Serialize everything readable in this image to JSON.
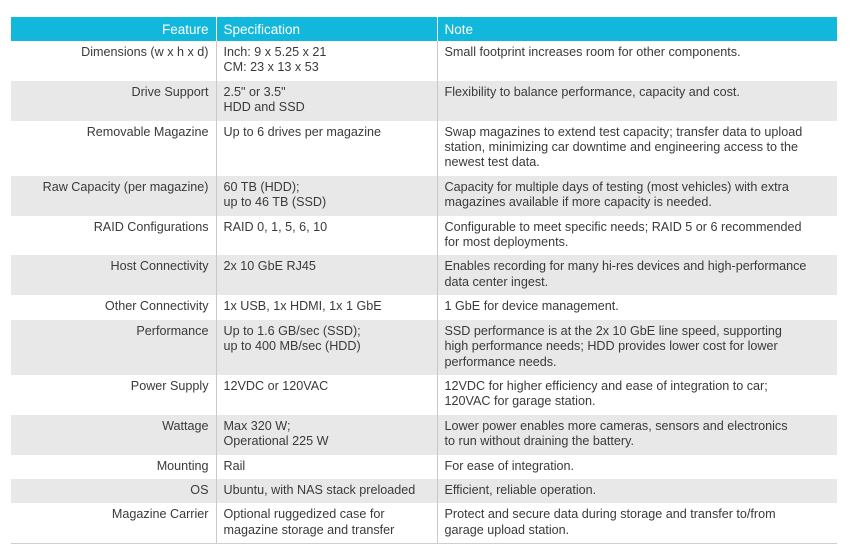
{
  "table": {
    "headers": [
      "Feature",
      "Specification",
      "Note"
    ],
    "rows": [
      {
        "feature": "Dimensions (w x h x d)",
        "spec": "Inch: 9 x 5.25 x 21\nCM: 23 x 13 x 53",
        "note": "Small footprint increases room for other components."
      },
      {
        "feature": "Drive Support",
        "spec": "2.5\" or 3.5\"\nHDD and SSD",
        "note": "Flexibility to balance performance, capacity and cost."
      },
      {
        "feature": "Removable Magazine",
        "spec": "Up to 6 drives per magazine",
        "note": "Swap magazines to extend test capacity; transfer data to upload\nstation, minimizing car downtime and engineering access to the\nnewest test data."
      },
      {
        "feature": "Raw Capacity (per magazine)",
        "spec": "60 TB (HDD);\nup to 46 TB (SSD)",
        "note": "Capacity for multiple days of testing (most vehicles) with extra\nmagazines available if more capacity is needed."
      },
      {
        "feature": "RAID Configurations",
        "spec": "RAID 0, 1, 5, 6, 10",
        "note": "Configurable to meet specific needs; RAID 5 or 6 recommended\nfor most deployments."
      },
      {
        "feature": "Host Connectivity",
        "spec": "2x 10 GbE RJ45",
        "note": "Enables recording for many hi-res devices and high-performance\ndata center ingest."
      },
      {
        "feature": "Other Connectivity",
        "spec": "1x USB, 1x HDMI, 1x 1 GbE",
        "note": "1 GbE for device management."
      },
      {
        "feature": "Performance",
        "spec": "Up to 1.6 GB/sec (SSD);\nup to 400 MB/sec (HDD)",
        "note": "SSD performance is at the 2x 10 GbE line speed, supporting\nhigh performance needs; HDD provides lower cost for lower\nperformance needs."
      },
      {
        "feature": "Power Supply",
        "spec": "12VDC or 120VAC",
        "note": "12VDC for higher efficiency and ease of integration to car;\n120VAC for garage station."
      },
      {
        "feature": "Wattage",
        "spec": "Max 320 W;\nOperational 225 W",
        "note": "Lower power enables more cameras, sensors and electronics\nto run without draining the battery."
      },
      {
        "feature": "Mounting",
        "spec": "Rail",
        "note": "For ease of integration."
      },
      {
        "feature": "OS",
        "spec": "Ubuntu, with NAS stack preloaded",
        "note": "Efficient, reliable operation."
      },
      {
        "feature": "Magazine Carrier",
        "spec": "Optional ruggedized case for\nmagazine storage and transfer",
        "note": "Protect and secure data during storage and transfer to/from\ngarage upload station."
      }
    ]
  }
}
